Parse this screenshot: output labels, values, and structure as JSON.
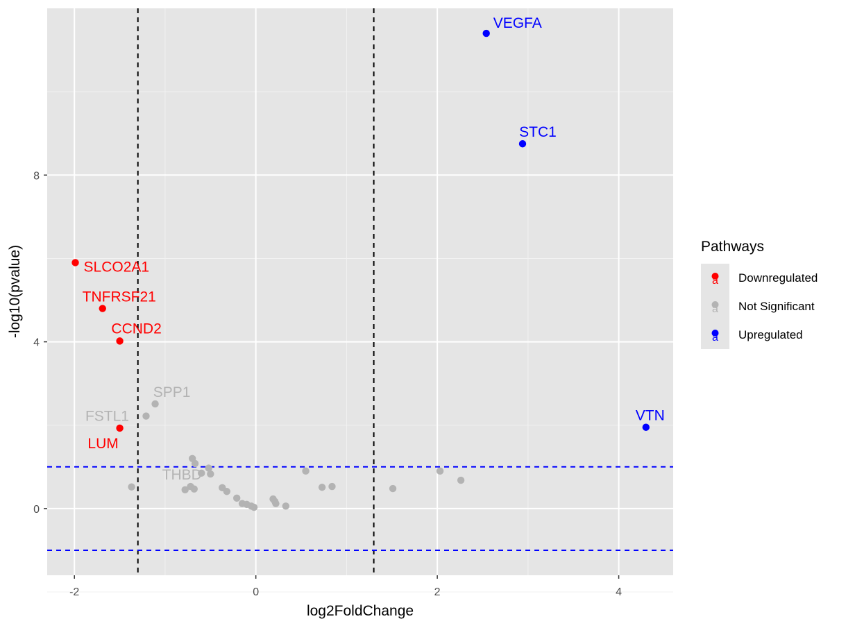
{
  "chart_data": {
    "type": "scatter",
    "xlabel": "log2FoldChange",
    "ylabel": "-log10(pvalue)",
    "xlim": [
      -2.3,
      4.6
    ],
    "ylim": [
      -1.6,
      12.0
    ],
    "x_ticks": [
      -2,
      0,
      2,
      4
    ],
    "y_ticks": [
      0,
      4,
      8
    ],
    "x_tick_labels": [
      "-2",
      "0",
      "2",
      "4"
    ],
    "y_tick_labels": [
      "0",
      "4",
      "8"
    ],
    "grid": true,
    "background": "#e5e5e5",
    "vlines": [
      -1.3,
      1.3
    ],
    "hlines": [
      1.0,
      -1.0
    ],
    "vline_color": "#000000",
    "hline_color": "#0000ff",
    "legend": {
      "title": "Pathways",
      "position": "right",
      "items": [
        {
          "label": "Downregulated",
          "color": "#ff0000",
          "key_glyph": "a"
        },
        {
          "label": "Not Significant",
          "color": "#b3b3b3",
          "key_glyph": "a"
        },
        {
          "label": "Upregulated",
          "color": "#0000ff",
          "key_glyph": "a"
        }
      ]
    },
    "groups": {
      "Downregulated": "#ff0000",
      "Not Significant": "#b3b3b3",
      "Upregulated": "#0000ff"
    },
    "points": [
      {
        "x": 2.54,
        "y": 11.4,
        "group": "Upregulated",
        "label": "VEGFA"
      },
      {
        "x": 2.94,
        "y": 8.75,
        "group": "Upregulated",
        "label": "STC1"
      },
      {
        "x": 4.3,
        "y": 1.95,
        "group": "Upregulated",
        "label": "VTN"
      },
      {
        "x": -1.99,
        "y": 5.9,
        "group": "Downregulated",
        "label": "SLCO2A1"
      },
      {
        "x": -1.69,
        "y": 4.8,
        "group": "Downregulated",
        "label": "TNFRSF21"
      },
      {
        "x": -1.5,
        "y": 4.02,
        "group": "Downregulated",
        "label": "CCND2"
      },
      {
        "x": -1.5,
        "y": 1.93,
        "group": "Downregulated",
        "label": "LUM"
      },
      {
        "x": -1.11,
        "y": 2.51,
        "group": "Not Significant",
        "label": "SPP1"
      },
      {
        "x": -1.21,
        "y": 2.22,
        "group": "Not Significant",
        "label": "FSTL1"
      },
      {
        "x": -0.6,
        "y": 0.85,
        "group": "Not Significant",
        "label": "THBD"
      },
      {
        "x": -1.37,
        "y": 0.52,
        "group": "Not Significant",
        "label": ""
      },
      {
        "x": -0.7,
        "y": 1.2,
        "group": "Not Significant",
        "label": ""
      },
      {
        "x": -0.67,
        "y": 1.08,
        "group": "Not Significant",
        "label": ""
      },
      {
        "x": -0.52,
        "y": 0.97,
        "group": "Not Significant",
        "label": ""
      },
      {
        "x": -0.5,
        "y": 0.83,
        "group": "Not Significant",
        "label": ""
      },
      {
        "x": -0.72,
        "y": 0.53,
        "group": "Not Significant",
        "label": ""
      },
      {
        "x": -0.78,
        "y": 0.45,
        "group": "Not Significant",
        "label": ""
      },
      {
        "x": -0.68,
        "y": 0.47,
        "group": "Not Significant",
        "label": ""
      },
      {
        "x": -0.37,
        "y": 0.5,
        "group": "Not Significant",
        "label": ""
      },
      {
        "x": -0.32,
        "y": 0.41,
        "group": "Not Significant",
        "label": ""
      },
      {
        "x": -0.21,
        "y": 0.25,
        "group": "Not Significant",
        "label": ""
      },
      {
        "x": -0.15,
        "y": 0.12,
        "group": "Not Significant",
        "label": ""
      },
      {
        "x": -0.1,
        "y": 0.1,
        "group": "Not Significant",
        "label": ""
      },
      {
        "x": -0.05,
        "y": 0.06,
        "group": "Not Significant",
        "label": ""
      },
      {
        "x": -0.02,
        "y": 0.03,
        "group": "Not Significant",
        "label": ""
      },
      {
        "x": 0.19,
        "y": 0.23,
        "group": "Not Significant",
        "label": ""
      },
      {
        "x": 0.21,
        "y": 0.17,
        "group": "Not Significant",
        "label": ""
      },
      {
        "x": 0.22,
        "y": 0.12,
        "group": "Not Significant",
        "label": ""
      },
      {
        "x": 0.33,
        "y": 0.06,
        "group": "Not Significant",
        "label": ""
      },
      {
        "x": 0.55,
        "y": 0.9,
        "group": "Not Significant",
        "label": ""
      },
      {
        "x": 0.73,
        "y": 0.51,
        "group": "Not Significant",
        "label": ""
      },
      {
        "x": 0.84,
        "y": 0.53,
        "group": "Not Significant",
        "label": ""
      },
      {
        "x": 1.51,
        "y": 0.48,
        "group": "Not Significant",
        "label": ""
      },
      {
        "x": 2.03,
        "y": 0.9,
        "group": "Not Significant",
        "label": ""
      },
      {
        "x": 2.26,
        "y": 0.68,
        "group": "Not Significant",
        "label": ""
      }
    ]
  }
}
